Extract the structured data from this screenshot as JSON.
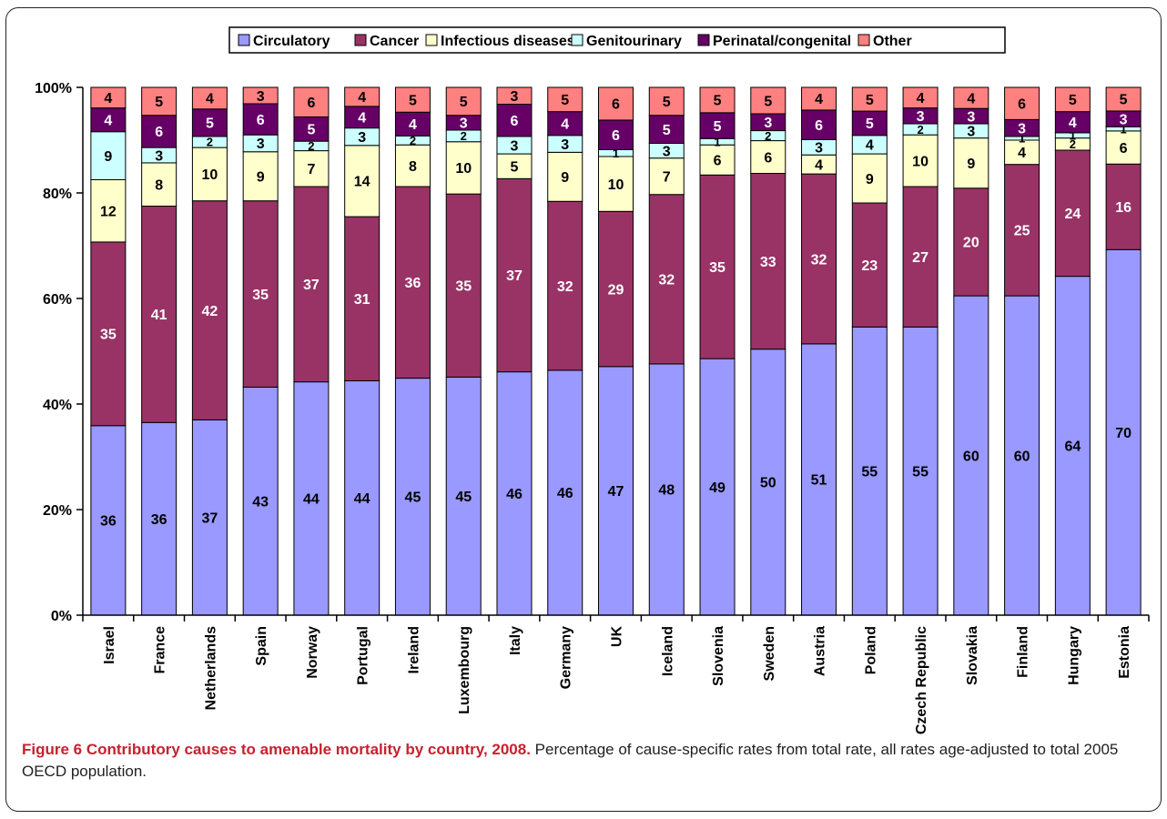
{
  "chart_data": {
    "type": "bar",
    "stacked": true,
    "orientation": "vertical",
    "categories": [
      "Israel",
      "France",
      "Netherlands",
      "Spain",
      "Norway",
      "Portugal",
      "Ireland",
      "Luxembourg",
      "Italy",
      "Germany",
      "UK",
      "Iceland",
      "Slovenia",
      "Sweden",
      "Austria",
      "Poland",
      "Czech Republic",
      "Slovakia",
      "Finland",
      "Hungary",
      "Estonia"
    ],
    "series": [
      {
        "name": "Circulatory",
        "color": "#9999ff",
        "values": [
          36,
          36,
          37,
          43,
          44,
          44,
          45,
          45,
          46,
          46,
          47,
          48,
          49,
          50,
          51,
          55,
          55,
          60,
          60,
          64,
          70
        ],
        "plot_values": [
          35.9,
          36.5,
          37.0,
          43.2,
          44.2,
          44.4,
          44.9,
          45.1,
          46.1,
          46.4,
          47.1,
          47.6,
          48.6,
          50.4,
          51.4,
          54.6,
          54.6,
          60.5,
          60.5,
          64.2,
          69.6
        ],
        "labels": [
          "36",
          "36",
          "37",
          "43",
          "44",
          "44",
          "45",
          "45",
          "46",
          "46",
          "47",
          "48",
          "49",
          "50",
          "51",
          "55",
          "55",
          "60",
          "60",
          "64",
          "70"
        ]
      },
      {
        "name": "Cancer",
        "color": "#993366",
        "values": [
          35,
          41,
          42,
          35,
          37,
          31,
          36,
          35,
          37,
          32,
          29,
          32,
          35,
          33,
          32,
          23,
          27,
          20,
          25,
          24,
          16
        ],
        "plot_values": [
          34.8,
          41.0,
          41.5,
          35.3,
          37.0,
          31.1,
          36.3,
          34.7,
          36.6,
          32.0,
          29.4,
          32.1,
          34.8,
          33.3,
          32.2,
          23.5,
          26.6,
          20.4,
          24.9,
          23.9,
          16.3
        ],
        "labels": [
          "35",
          "41",
          "42",
          "35",
          "37",
          "31",
          "36",
          "35",
          "37",
          "32",
          "29",
          "32",
          "35",
          "33",
          "32",
          "23",
          "27",
          "20",
          "25",
          "24",
          "16"
        ]
      },
      {
        "name": "Infectious diseases",
        "color": "#ffffcc",
        "values": [
          12,
          8,
          10,
          9,
          7,
          14,
          8,
          10,
          5,
          9,
          10,
          7,
          6,
          6,
          4,
          9,
          10,
          9,
          4,
          2,
          6
        ],
        "plot_values": [
          11.8,
          8.2,
          10.1,
          9.3,
          6.8,
          13.5,
          7.9,
          9.9,
          4.7,
          9.3,
          10.4,
          6.9,
          5.7,
          6.2,
          3.6,
          9.3,
          9.8,
          9.5,
          4.6,
          2.3,
          6.3
        ],
        "labels": [
          "12",
          "8",
          "10",
          "9",
          "7",
          "14",
          "8",
          "10",
          "5",
          "9",
          "10",
          "7",
          "6",
          "6",
          "4",
          "9",
          "10",
          "9",
          "4",
          "2",
          "6"
        ]
      },
      {
        "name": "Genitourinary",
        "color": "#ccffff",
        "values": [
          9,
          3,
          2,
          3,
          2,
          3,
          2,
          2,
          3,
          3,
          1,
          3,
          1,
          2,
          3,
          4,
          2,
          3,
          1,
          1,
          1
        ],
        "plot_values": [
          9.1,
          2.9,
          2.1,
          3.2,
          1.8,
          3.3,
          1.7,
          2.2,
          3.3,
          3.2,
          1.3,
          2.8,
          1.2,
          1.9,
          2.9,
          3.5,
          2.1,
          2.7,
          0.7,
          1.0,
          0.8
        ],
        "labels": [
          "9",
          "3",
          "2",
          "3",
          "2",
          "3",
          "2",
          "2",
          "3",
          "3",
          "1",
          "3",
          "1",
          "2",
          "3",
          "4",
          "2",
          "3",
          "1",
          "1",
          "1"
        ]
      },
      {
        "name": "Perinatal/congenital",
        "color": "#660066",
        "values": [
          4,
          6,
          5,
          6,
          5,
          4,
          4,
          3,
          6,
          4,
          6,
          5,
          5,
          3,
          6,
          5,
          3,
          3,
          3,
          4,
          3
        ],
        "plot_values": [
          4.5,
          6.1,
          5.2,
          5.9,
          4.6,
          4.1,
          4.5,
          2.8,
          6.1,
          4.5,
          5.6,
          5.3,
          4.9,
          3.2,
          5.6,
          4.6,
          3.0,
          2.9,
          3.2,
          4.0,
          3.0
        ],
        "labels": [
          "4",
          "6",
          "5",
          "6",
          "5",
          "4",
          "4",
          "3",
          "6",
          "4",
          "6",
          "5",
          "5",
          "3",
          "6",
          "5",
          "3",
          "3",
          "3",
          "4",
          "3"
        ]
      },
      {
        "name": "Other",
        "color": "#ff8080",
        "values": [
          4,
          5,
          4,
          3,
          6,
          4,
          5,
          5,
          3,
          5,
          6,
          5,
          5,
          5,
          4,
          5,
          4,
          4,
          6,
          5,
          5
        ],
        "plot_values": [
          3.9,
          5.3,
          4.1,
          3.1,
          5.6,
          3.6,
          4.7,
          5.3,
          3.2,
          4.6,
          6.2,
          5.3,
          4.8,
          5.0,
          4.3,
          4.5,
          3.9,
          4.0,
          6.1,
          4.6,
          4.5
        ],
        "labels": [
          "4",
          "5",
          "4",
          "3",
          "6",
          "4",
          "5",
          "5",
          "3",
          "5",
          "6",
          "5",
          "5",
          "5",
          "4",
          "5",
          "4",
          "4",
          "6",
          "5",
          "5"
        ]
      }
    ],
    "y_ticks": [
      "0%",
      "20%",
      "40%",
      "60%",
      "80%",
      "100%"
    ],
    "ylim": [
      0,
      100
    ],
    "title": "",
    "xlabel": "",
    "ylabel": "",
    "legend_position": "top",
    "grid": false
  },
  "caption": {
    "title": "Figure 6 Contributory causes to amenable mortality by country, 2008.",
    "text": " Percentage of cause-specific rates from total rate, all rates age-adjusted to total 2005 OECD population."
  }
}
